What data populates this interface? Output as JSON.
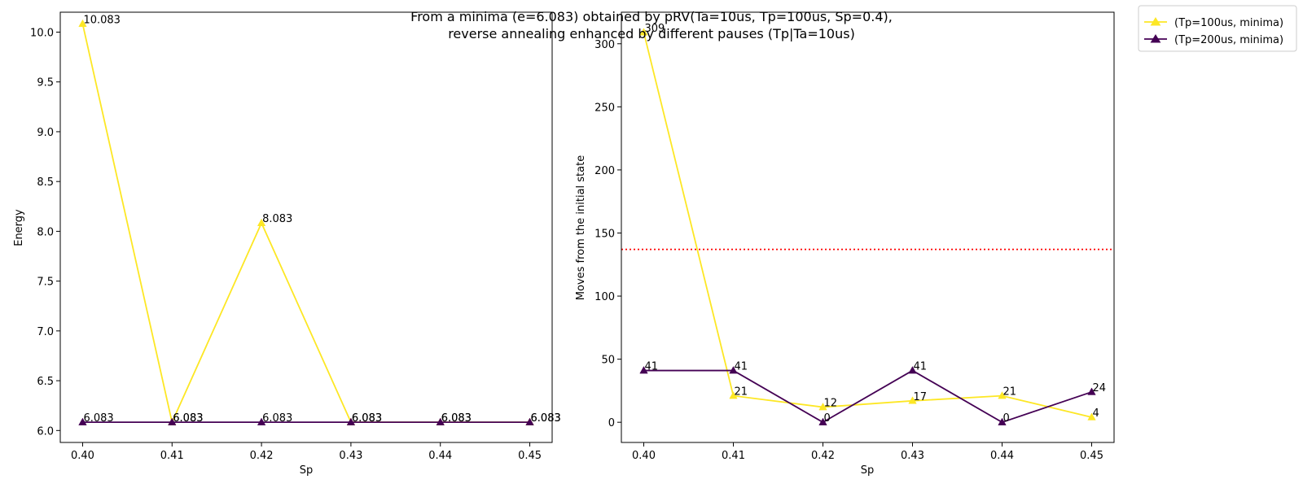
{
  "chart_data": [
    {
      "type": "line",
      "title": "From a minima (e=6.083) obtained by pRV(Ta=10us, Tp=100us, Sp=0.4),\nreverse annealing enhanced by different pauses (Tp|Ta=10us)",
      "title_lines": [
        "From a minima (e=6.083) obtained by pRV(Ta=10us, Tp=100us, Sp=0.4),",
        "reverse annealing enhanced by different pauses (Tp|Ta=10us)"
      ],
      "xlabel": "Sp",
      "ylabel": "Energy",
      "x": [
        0.4,
        0.41,
        0.42,
        0.43,
        0.44,
        0.45
      ],
      "xticks": [
        "0.40",
        "0.41",
        "0.42",
        "0.43",
        "0.44",
        "0.45"
      ],
      "yticks": [
        "6.0",
        "6.5",
        "7.0",
        "7.5",
        "8.0",
        "8.5",
        "9.0",
        "9.5",
        "10.0"
      ],
      "xlim": [
        0.3975,
        0.4525
      ],
      "ylim": [
        5.88,
        10.2
      ],
      "grid": false,
      "series": [
        {
          "name": "(Tp=100us, minima)",
          "color": "#fde725",
          "marker": "triangle",
          "values": [
            10.083,
            6.083,
            8.083,
            6.083,
            6.083,
            6.083
          ],
          "labels": [
            "10.083",
            "6.083",
            "8.083",
            "6.083",
            "6.083",
            "6.083"
          ]
        },
        {
          "name": "(Tp=200us, minima)",
          "color": "#440154",
          "marker": "triangle",
          "values": [
            6.083,
            6.083,
            6.083,
            6.083,
            6.083,
            6.083
          ],
          "labels": [
            "6.083",
            "6.083",
            "6.083",
            "6.083",
            "6.083",
            "6.083"
          ]
        }
      ]
    },
    {
      "type": "line",
      "xlabel": "Sp",
      "ylabel": "Moves from the initial state",
      "x": [
        0.4,
        0.41,
        0.42,
        0.43,
        0.44,
        0.45
      ],
      "xticks": [
        "0.40",
        "0.41",
        "0.42",
        "0.43",
        "0.44",
        "0.45"
      ],
      "yticks": [
        "0",
        "50",
        "100",
        "150",
        "200",
        "250",
        "300"
      ],
      "xlim": [
        0.3975,
        0.4525
      ],
      "ylim": [
        -16,
        325
      ],
      "grid": false,
      "reference_line": {
        "y": 137,
        "color": "#ff0000",
        "style": "dotted"
      },
      "legend_position": "outside-top-right",
      "series": [
        {
          "name": "(Tp=100us, minima)",
          "color": "#fde725",
          "marker": "triangle",
          "values": [
            309,
            21,
            12,
            17,
            21,
            4
          ],
          "labels": [
            "309",
            "21",
            "12",
            "17",
            "21",
            "4"
          ]
        },
        {
          "name": "(Tp=200us, minima)",
          "color": "#440154",
          "marker": "triangle",
          "values": [
            41,
            41,
            0,
            41,
            0,
            24
          ],
          "labels": [
            "41",
            "41",
            "0",
            "41",
            "0",
            "24"
          ]
        }
      ]
    }
  ]
}
